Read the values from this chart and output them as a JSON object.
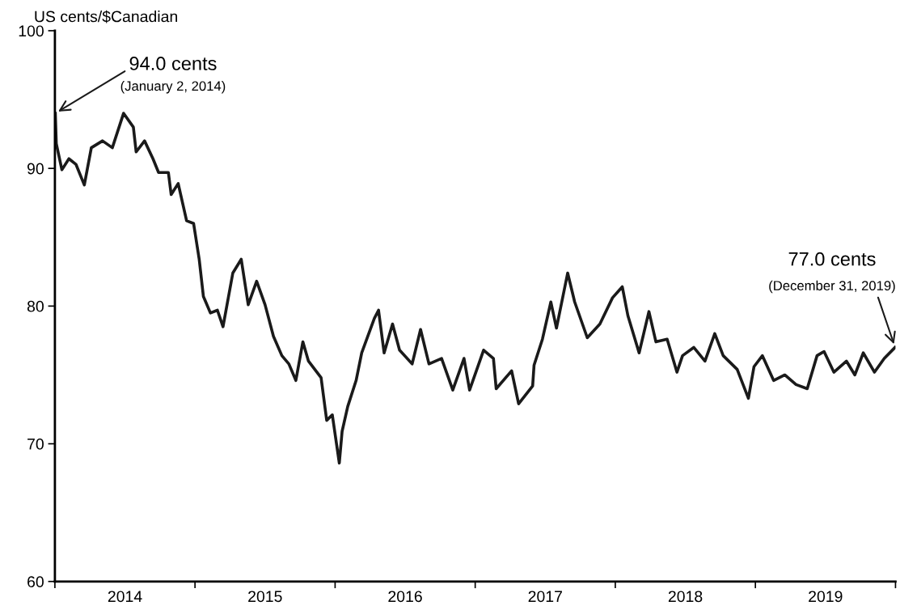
{
  "chart_data": {
    "type": "line",
    "ylabel": "US cents/$Canadian",
    "x": [
      2014.003,
      2014.01,
      2014.05,
      2014.1,
      2014.15,
      2014.21,
      2014.26,
      2014.34,
      2014.41,
      2014.49,
      2014.56,
      2014.58,
      2014.64,
      2014.7,
      2014.74,
      2014.81,
      2014.83,
      2014.88,
      2014.94,
      2014.99,
      2015.03,
      2015.06,
      2015.11,
      2015.16,
      2015.2,
      2015.27,
      2015.33,
      2015.38,
      2015.44,
      2015.5,
      2015.56,
      2015.62,
      2015.67,
      2015.72,
      2015.77,
      2015.81,
      2015.9,
      2015.94,
      2015.98,
      2016.03,
      2016.05,
      2016.09,
      2016.15,
      2016.19,
      2016.28,
      2016.31,
      2016.35,
      2016.41,
      2016.46,
      2016.55,
      2016.61,
      2016.67,
      2016.76,
      2016.84,
      2016.92,
      2016.96,
      2017.06,
      2017.13,
      2017.15,
      2017.26,
      2017.31,
      2017.41,
      2017.42,
      2017.48,
      2017.54,
      2017.58,
      2017.66,
      2017.71,
      2017.8,
      2017.89,
      2017.98,
      2018.05,
      2018.09,
      2018.17,
      2018.24,
      2018.29,
      2018.37,
      2018.44,
      2018.48,
      2018.56,
      2018.64,
      2018.71,
      2018.77,
      2018.87,
      2018.95,
      2018.99,
      2019.05,
      2019.13,
      2019.21,
      2019.29,
      2019.37,
      2019.44,
      2019.49,
      2019.56,
      2019.65,
      2019.71,
      2019.77,
      2019.85,
      2019.92,
      2019.997
    ],
    "series": [
      {
        "color": "#1a1a1a",
        "values": [
          94.0,
          91.8,
          89.9,
          90.7,
          90.3,
          88.8,
          91.5,
          92.0,
          91.5,
          94.0,
          93.0,
          91.2,
          92.0,
          90.7,
          89.7,
          89.7,
          88.1,
          88.9,
          86.2,
          86.0,
          83.4,
          80.7,
          79.5,
          79.7,
          78.5,
          82.4,
          83.4,
          80.1,
          81.8,
          80.1,
          77.8,
          76.4,
          75.8,
          74.6,
          77.4,
          76.0,
          74.8,
          71.7,
          72.1,
          68.6,
          70.9,
          72.7,
          74.6,
          76.6,
          79.1,
          79.7,
          76.6,
          78.7,
          76.8,
          75.8,
          78.3,
          75.8,
          76.2,
          73.9,
          76.2,
          73.9,
          76.8,
          76.2,
          74.0,
          75.3,
          72.9,
          74.2,
          75.7,
          77.6,
          80.3,
          78.4,
          82.4,
          80.3,
          77.7,
          78.7,
          80.6,
          81.4,
          79.3,
          76.6,
          79.6,
          77.4,
          77.6,
          75.2,
          76.4,
          77.0,
          76.0,
          78.0,
          76.4,
          75.4,
          73.3,
          75.6,
          76.4,
          74.6,
          75.0,
          74.3,
          74.0,
          76.4,
          76.7,
          75.2,
          76.0,
          75.0,
          76.6,
          75.2,
          76.2,
          77.0
        ]
      }
    ],
    "xlim": [
      2014,
      2020
    ],
    "xticks": [
      {
        "value": 2014,
        "label": null
      },
      {
        "value": 2014.5,
        "label": "2014"
      },
      {
        "value": 2015,
        "label": null
      },
      {
        "value": 2015.5,
        "label": "2015"
      },
      {
        "value": 2016,
        "label": null
      },
      {
        "value": 2016.5,
        "label": "2016"
      },
      {
        "value": 2017,
        "label": null
      },
      {
        "value": 2017.5,
        "label": "2017"
      },
      {
        "value": 2018,
        "label": null
      },
      {
        "value": 2018.5,
        "label": "2018"
      },
      {
        "value": 2019,
        "label": null
      },
      {
        "value": 2019.5,
        "label": "2019"
      },
      {
        "value": 2020,
        "label": null
      }
    ],
    "ylim": [
      60,
      100
    ],
    "yticks": [
      60,
      70,
      80,
      90,
      100
    ],
    "annotations": [
      {
        "text": "94.0 cents",
        "x": 2014.003,
        "y": 94.0
      },
      "(January 2, 2014)",
      "77.0 cents",
      {
        "text": "(December 31, 2019)",
        "x": 2019.997,
        "y": 77.0
      }
    ],
    "grid": false,
    "legend": false,
    "marker": "none",
    "line_style": "solid"
  }
}
